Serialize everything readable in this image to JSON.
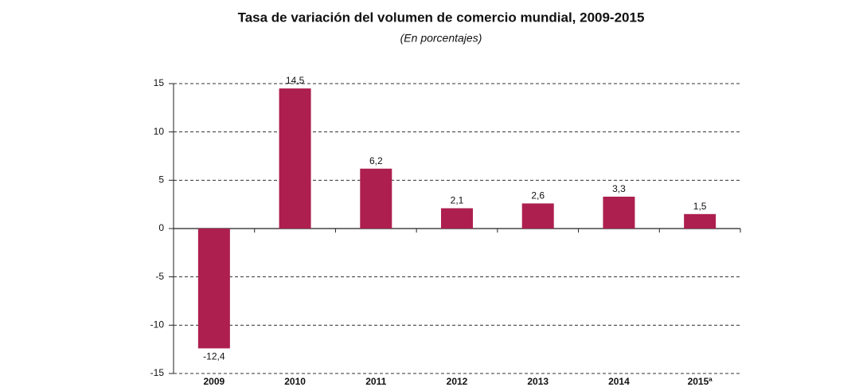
{
  "chart_data": {
    "type": "bar",
    "title": "Tasa de variación del volumen de comercio mundial, 2009-2015",
    "subtitle": "(En porcentajes)",
    "categories": [
      "2009",
      "2010",
      "2011",
      "2012",
      "2013",
      "2014",
      "2015ª"
    ],
    "values": [
      -12.4,
      14.5,
      6.2,
      2.1,
      2.6,
      3.3,
      1.5
    ],
    "value_labels": [
      "-12,4",
      "14,5",
      "6,2",
      "2,1",
      "2,6",
      "3,3",
      "1,5"
    ],
    "color": "#ad1f4f",
    "ylim": [
      -15,
      15
    ],
    "yticks": [
      -15,
      -10,
      -5,
      0,
      5,
      10,
      15
    ],
    "grid": true
  }
}
